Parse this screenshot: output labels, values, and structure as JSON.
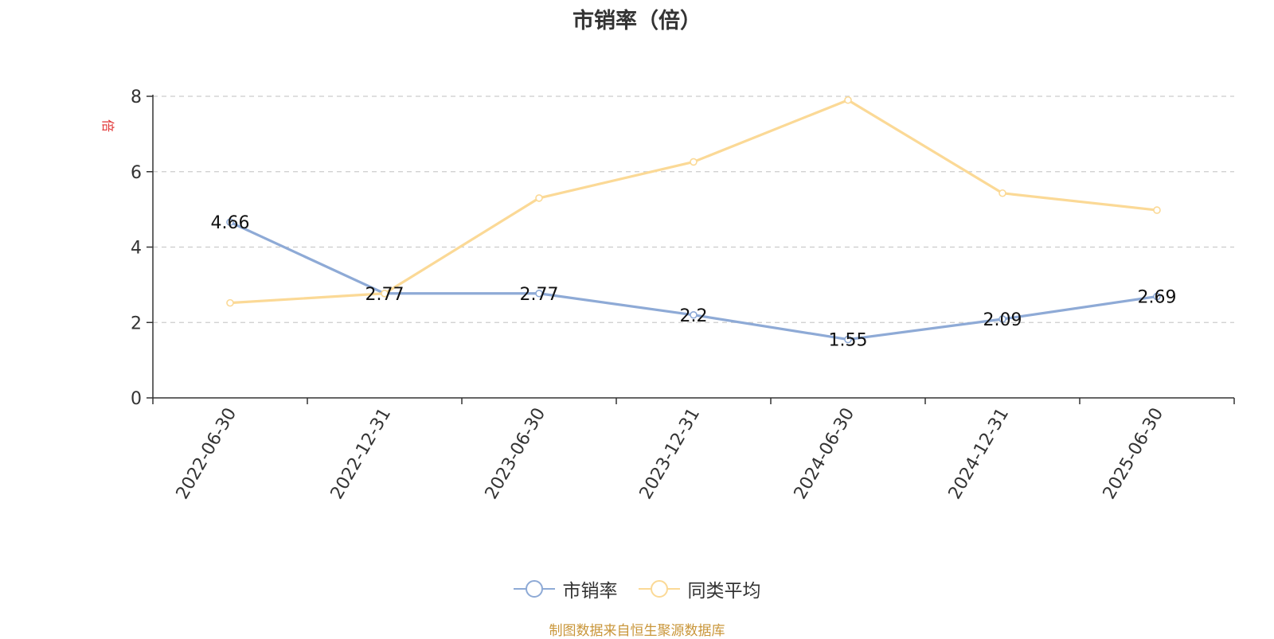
{
  "chart_data": {
    "type": "line",
    "title": "市销率（倍）",
    "ylabel": "倍",
    "categories": [
      "2022-06-30",
      "2022-12-31",
      "2023-06-30",
      "2023-12-31",
      "2024-06-30",
      "2024-12-31",
      "2025-06-30"
    ],
    "ylim": [
      0,
      8
    ],
    "yticks": [
      "0",
      "2",
      "4",
      "6",
      "8"
    ],
    "grid": true,
    "legend_position": "bottom",
    "series": [
      {
        "name": "市销率",
        "color": "#8eaad6",
        "values": [
          4.66,
          2.77,
          2.77,
          2.2,
          1.55,
          2.09,
          2.69
        ],
        "labels": [
          "4.66",
          "2.77",
          "2.77",
          "2.2",
          "1.55",
          "2.09",
          "2.69"
        ]
      },
      {
        "name": "同类平均",
        "color": "#fbd996",
        "values": [
          2.52,
          2.77,
          5.3,
          6.26,
          7.9,
          5.43,
          4.98
        ]
      }
    ]
  },
  "source": "制图数据来自恒生聚源数据库"
}
